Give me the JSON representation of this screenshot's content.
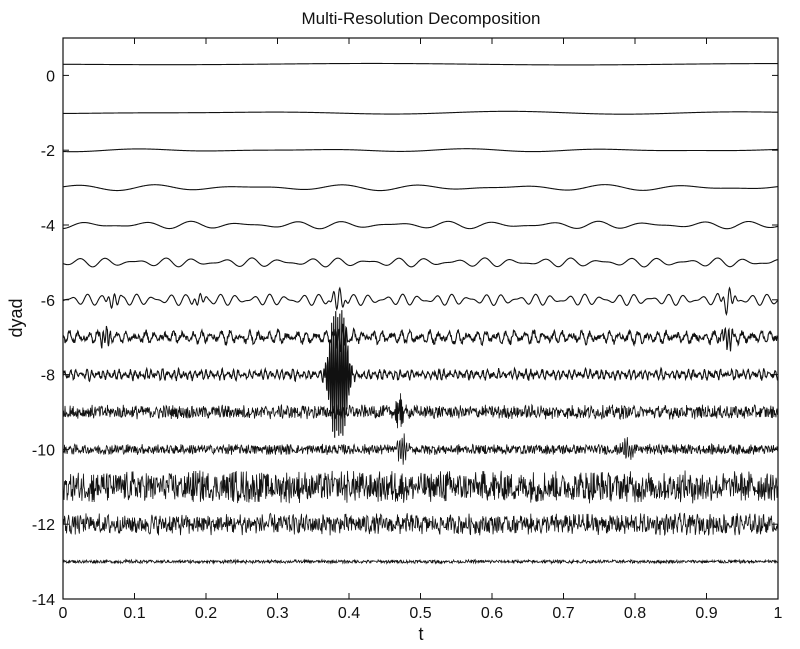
{
  "chart_data": {
    "type": "line",
    "title": "Multi-Resolution Decomposition",
    "xlabel": "t",
    "ylabel": "dyad",
    "xlim": [
      0,
      1
    ],
    "ylim": [
      -14,
      1
    ],
    "grid": false,
    "legend": "none",
    "x_ticks": [
      0,
      0.1,
      0.2,
      0.3,
      0.4,
      0.5,
      0.6,
      0.7,
      0.8,
      0.9,
      1
    ],
    "x_tick_labels": [
      "0",
      "0.1",
      "0.2",
      "0.3",
      "0.4",
      "0.5",
      "0.6",
      "0.7",
      "0.8",
      "0.9",
      "1"
    ],
    "y_ticks": [
      0,
      -2,
      -4,
      -6,
      -8,
      -10,
      -12,
      -14
    ],
    "y_tick_labels": [
      "0",
      "-2",
      "-4",
      "-6",
      "-8",
      "-10",
      "-12",
      "-14"
    ],
    "series": [
      {
        "offset": 0.3,
        "character": "smooth trend, nearly flat",
        "amplitude": 0.02
      },
      {
        "offset": -1.0,
        "character": "slow wave, slightly dipping at 0.35",
        "amplitude": 0.04
      },
      {
        "offset": -2.0,
        "character": "slow wave",
        "amplitude": 0.04
      },
      {
        "offset": -3.0,
        "character": "low frequency oscillation",
        "amplitude": 0.08
      },
      {
        "offset": -4.0,
        "character": "oscillation",
        "amplitude": 0.1
      },
      {
        "offset": -5.0,
        "character": "oscillation",
        "amplitude": 0.12
      },
      {
        "offset": -6.0,
        "character": "oscillation with bursts near 0.07, 0.2, 0.38, 0.93",
        "amplitude": 0.15
      },
      {
        "offset": -7.0,
        "character": "higher frequency with bursts",
        "amplitude": 0.15
      },
      {
        "offset": -8.0,
        "character": "high frequency, large spikes near 0.38-0.40",
        "amplitude": 0.12
      },
      {
        "offset": -9.0,
        "character": "noise-like detail",
        "amplitude": 0.2
      },
      {
        "offset": -10.0,
        "character": "noise-like detail with bursts",
        "amplitude": 0.15
      },
      {
        "offset": -11.0,
        "character": "dense high-frequency detail",
        "amplitude": 0.45
      },
      {
        "offset": -12.0,
        "character": "dense high-frequency detail",
        "amplitude": 0.3
      },
      {
        "offset": -13.0,
        "character": "finest scale, small amplitude",
        "amplitude": 0.05
      }
    ],
    "bursts": [
      {
        "series": 6,
        "t": 0.07,
        "amplitude": 0.2
      },
      {
        "series": 6,
        "t": 0.19,
        "amplitude": 0.15
      },
      {
        "series": 6,
        "t": 0.385,
        "amplitude": 0.3
      },
      {
        "series": 6,
        "t": 0.93,
        "amplitude": 0.3
      },
      {
        "series": 7,
        "t": 0.06,
        "amplitude": 0.25
      },
      {
        "series": 7,
        "t": 0.39,
        "amplitude": 0.35
      },
      {
        "series": 7,
        "t": 0.93,
        "amplitude": 0.3
      },
      {
        "series": 8,
        "t": 0.378,
        "amplitude": 1.6
      },
      {
        "series": 8,
        "t": 0.392,
        "amplitude": 1.6
      },
      {
        "series": 9,
        "t": 0.47,
        "amplitude": 0.5
      },
      {
        "series": 10,
        "t": 0.475,
        "amplitude": 0.4
      },
      {
        "series": 10,
        "t": 0.79,
        "amplitude": 0.3
      }
    ]
  }
}
